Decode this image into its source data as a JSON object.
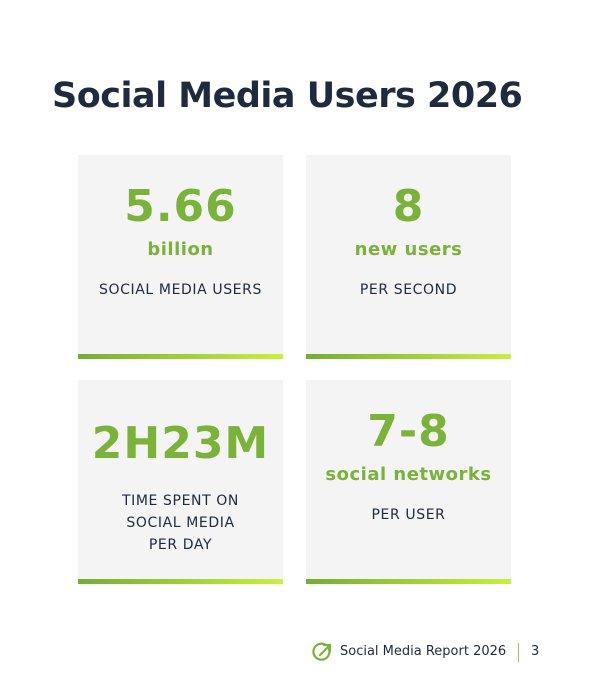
{
  "header": {
    "title": "Social Media Users 2026"
  },
  "cards": [
    {
      "value": "5.66",
      "unit": "billion",
      "label_lines": [
        "SOCIAL MEDIA USERS"
      ]
    },
    {
      "value": "8",
      "unit": "new users",
      "label_lines": [
        "PER SECOND"
      ]
    },
    {
      "value": "2H23M",
      "label_lines": [
        "TIME SPENT ON",
        "SOCIAL MEDIA",
        "PER DAY"
      ]
    },
    {
      "value": "7-8",
      "unit": "social networks",
      "label_lines": [
        "PER USER"
      ]
    }
  ],
  "footer": {
    "text": "Social Media Report 2026",
    "page": "3"
  }
}
